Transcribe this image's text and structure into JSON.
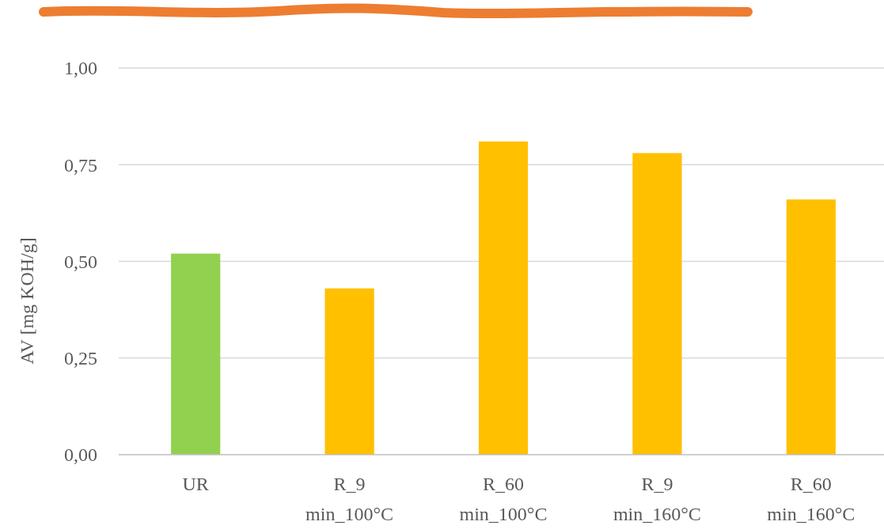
{
  "chart_data": {
    "type": "bar",
    "ylabel": "AV [mg KOH/g]",
    "categories": [
      "UR",
      "R_9 min_100°C",
      "R_60 min_100°C",
      "R_9 min_160°C",
      "R_60 min_160°C"
    ],
    "values": [
      0.52,
      0.43,
      0.81,
      0.78,
      0.66
    ],
    "colors": [
      "#92d050",
      "#ffc000",
      "#ffc000",
      "#ffc000",
      "#ffc000"
    ],
    "ylim": [
      0,
      1
    ],
    "yticks": [
      {
        "value": 0,
        "label": "0,00"
      },
      {
        "value": 0.25,
        "label": "0,25"
      },
      {
        "value": 0.5,
        "label": "0,50"
      },
      {
        "value": 0.75,
        "label": "0,75"
      },
      {
        "value": 1,
        "label": "1,00"
      }
    ],
    "grid": "y"
  }
}
